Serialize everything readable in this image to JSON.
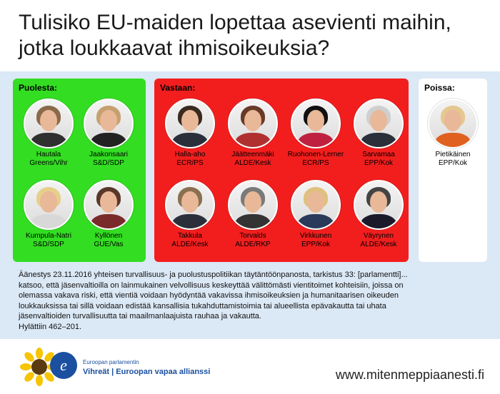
{
  "title_line1": "Tulisiko EU-maiden lopettaa asevienti maihin,",
  "title_line2": "jotka loukkaavat ihmisoikeuksia?",
  "colors": {
    "for": "#33dd22",
    "against": "#f21e1e",
    "absent": "#ffffff",
    "background": "#dbe8f5"
  },
  "groups": {
    "for": {
      "label": "Puolesta:",
      "members": [
        {
          "name": "Hautala",
          "party": "Greens/Vihr"
        },
        {
          "name": "Jaakonsaari",
          "party": "S&D/SDP"
        },
        {
          "name": "Kumpula-Natri",
          "party": "S&D/SDP"
        },
        {
          "name": "Kyllönen",
          "party": "GUE/Vas"
        }
      ]
    },
    "against": {
      "label": "Vastaan:",
      "members": [
        {
          "name": "Halla-aho",
          "party": "ECR/PS"
        },
        {
          "name": "Jäätteenmäki",
          "party": "ALDE/Kesk"
        },
        {
          "name": "Ruohonen-Lerner",
          "party": "ECR/PS"
        },
        {
          "name": "Sarvamaa",
          "party": "EPP/Kok"
        },
        {
          "name": "Takkula",
          "party": "ALDE/Kesk"
        },
        {
          "name": "Torvalds",
          "party": "ALDE/RKP"
        },
        {
          "name": "Virkkunen",
          "party": "EPP/Kok"
        },
        {
          "name": "Väyrynen",
          "party": "ALDE/Kesk"
        }
      ]
    },
    "absent": {
      "label": "Poissa:",
      "members": [
        {
          "name": "Pietikäinen",
          "party": "EPP/Kok"
        }
      ]
    }
  },
  "vote_text": {
    "line1": "Äänestys 23.11.2016 yhteisen turvallisuus- ja puolustuspolitiikan täytäntöönpanosta, tarkistus 33: [parlamentti]...",
    "line2": "katsoo, että jäsenvaltioilla on lainmukainen velvollisuus keskeyttää välittömästi vientitoimet kohteisiin, joissa on",
    "line3": "olemassa vakava riski, että vientiä voidaan hyödyntää vakavissa ihmisoikeuksien ja humanitaarisen oikeuden",
    "line4": "loukkauksissa tai sillä voidaan edistää kansallisia tukahduttamistoimia tai alueellista epävakautta tai uhata",
    "line5": "jäsenvaltioiden turvallisuutta tai maailmanlaajuista rauhaa ja vakautta.",
    "result": "Hylättiin 462–201."
  },
  "footer": {
    "logo_sub": "Euroopan parlamentin",
    "logo_main": "Vihreät | Euroopan vapaa allianssi",
    "url": "www.mitenmeppiaanesti.fi"
  }
}
